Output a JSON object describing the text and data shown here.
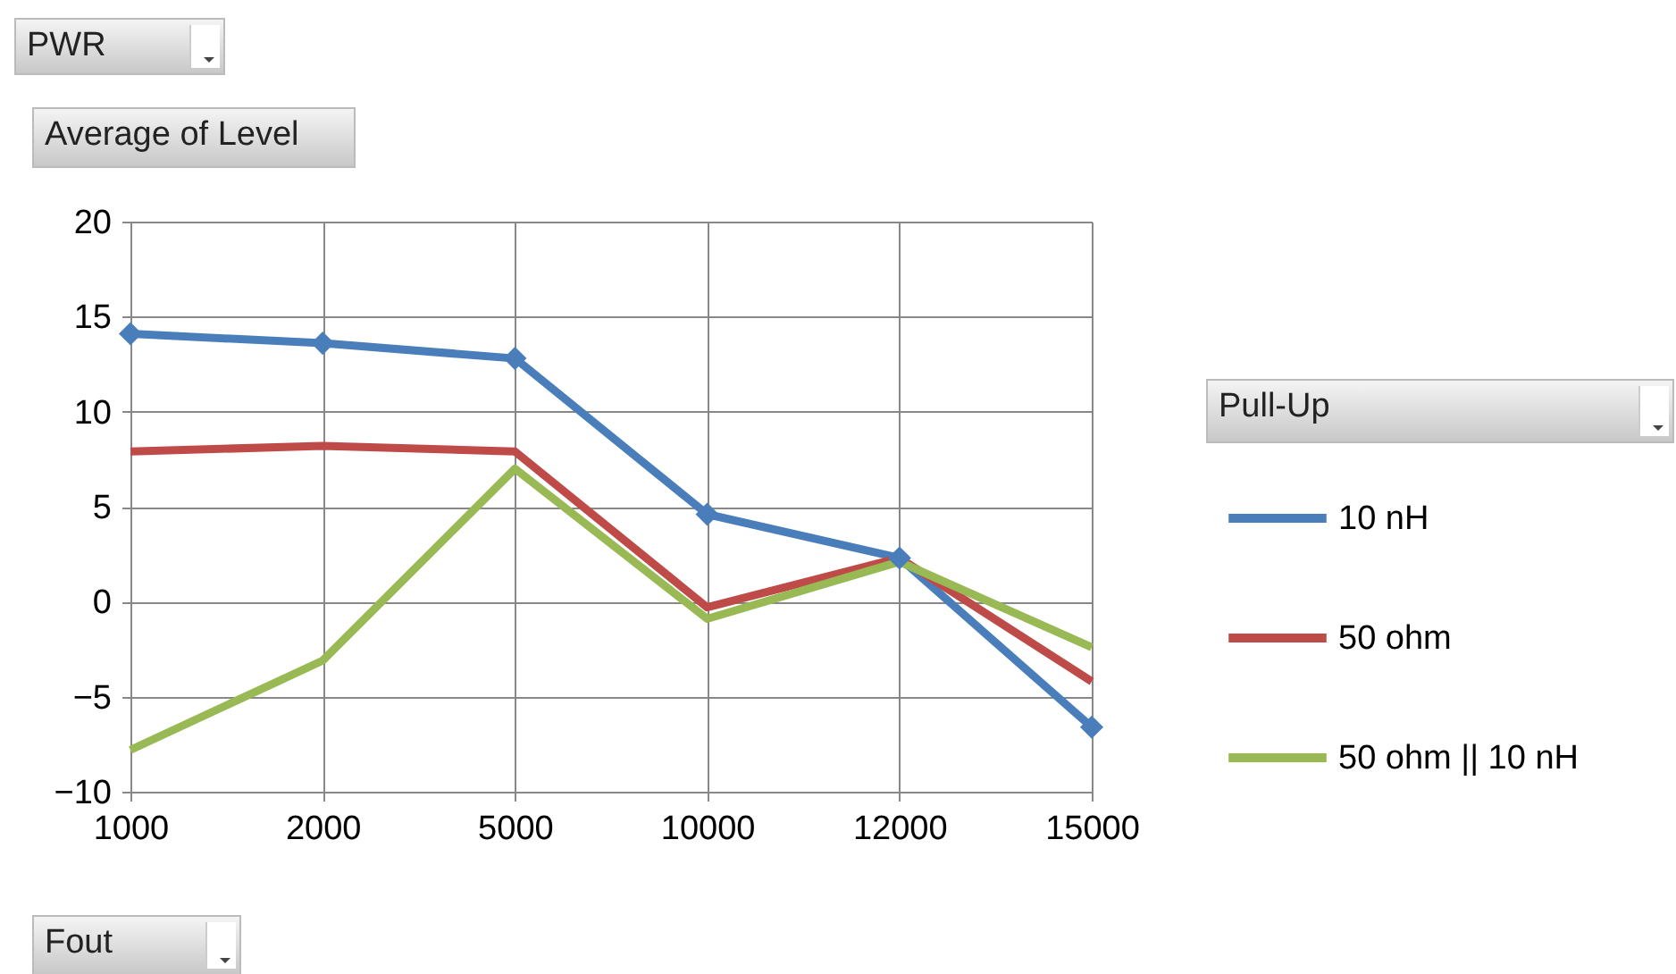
{
  "chart_data": {
    "type": "line",
    "ylabel": "Average of Level",
    "xlabel": "Fout",
    "legend_title": "Pull-Up",
    "annotations": [
      "PWR"
    ],
    "categories": [
      "1000",
      "2000",
      "5000",
      "10000",
      "12000",
      "15000"
    ],
    "ylim": [
      -10,
      20
    ],
    "yticks": [
      -10,
      -5,
      0,
      5,
      10,
      15,
      20
    ],
    "grid": true,
    "legend": "right",
    "line_style": "solid",
    "series": [
      {
        "name": "10 nH",
        "color": "#4a7ebb",
        "marker": "diamond",
        "values": [
          14.1,
          13.6,
          12.8,
          4.6,
          2.3,
          -6.6
        ]
      },
      {
        "name": "50 ohm",
        "color": "#be4b48",
        "values": [
          7.9,
          8.2,
          7.9,
          -0.3,
          2.3,
          -4.2
        ]
      },
      {
        "name": "50 ohm || 10 nH",
        "color": "#98b954",
        "values": [
          -7.8,
          -3.1,
          7.0,
          -0.9,
          2.1,
          -2.4
        ]
      }
    ]
  }
}
